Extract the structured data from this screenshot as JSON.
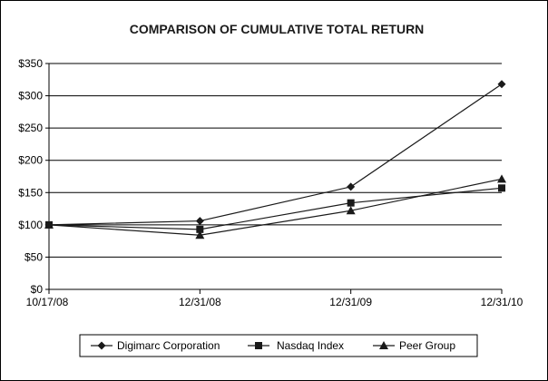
{
  "chart_data": {
    "type": "line",
    "title": "COMPARISON OF CUMULATIVE TOTAL RETURN",
    "xlabel": "",
    "ylabel": "",
    "categories": [
      "10/17/08",
      "12/31/08",
      "12/31/09",
      "12/31/10"
    ],
    "ylim": [
      0,
      350
    ],
    "yticks": [
      "$0",
      "$50",
      "$100",
      "$150",
      "$200",
      "$250",
      "$300",
      "$350"
    ],
    "grid": true,
    "legend_position": "bottom",
    "series": [
      {
        "name": "Digimarc Corporation",
        "marker": "diamond",
        "values": [
          100,
          106,
          159,
          318
        ]
      },
      {
        "name": "Nasdaq Index",
        "marker": "square",
        "values": [
          100,
          93,
          134,
          157
        ]
      },
      {
        "name": "Peer Group",
        "marker": "triangle",
        "values": [
          100,
          84,
          122,
          171
        ]
      }
    ]
  }
}
